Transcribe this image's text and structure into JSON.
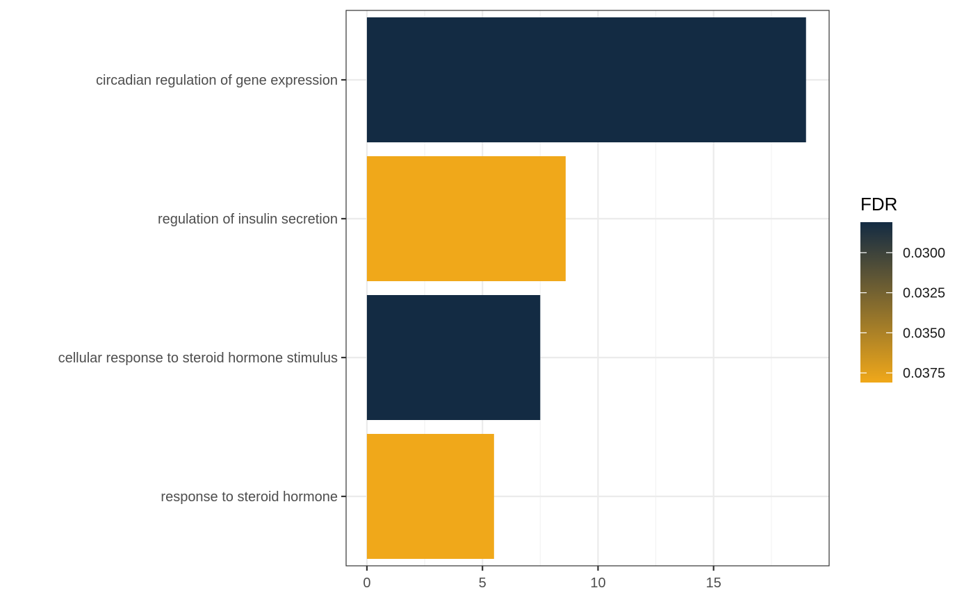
{
  "chart_data": {
    "type": "bar",
    "orientation": "horizontal",
    "categories": [
      "circadian regulation of gene expression",
      "regulation of insulin secretion",
      "cellular response to steroid hormone stimulus",
      "response to steroid hormone"
    ],
    "values": [
      19.0,
      8.6,
      7.5,
      5.5
    ],
    "fdr": [
      0.0281,
      0.0381,
      0.0281,
      0.0381
    ],
    "xlim": [
      -0.9,
      20.0
    ],
    "xticks": [
      0,
      5,
      10,
      15
    ],
    "xtick_labels": [
      "0",
      "5",
      "10",
      "15"
    ],
    "grid": true,
    "legend": {
      "title": "FDR",
      "placement": "right",
      "range": [
        0.0281,
        0.0381
      ],
      "ticks": [
        0.03,
        0.0325,
        0.035,
        0.0375
      ],
      "tick_labels": [
        "0.0300",
        "0.0325",
        "0.0350",
        "0.0375"
      ],
      "low_color": "#132B43",
      "high_color": "#F0A81A"
    },
    "colors": {
      "panel_border": "#333333",
      "grid_major": "#ebebeb",
      "grid_minor": "#f2f2f2",
      "axis_text": "#4d4d4d"
    }
  }
}
